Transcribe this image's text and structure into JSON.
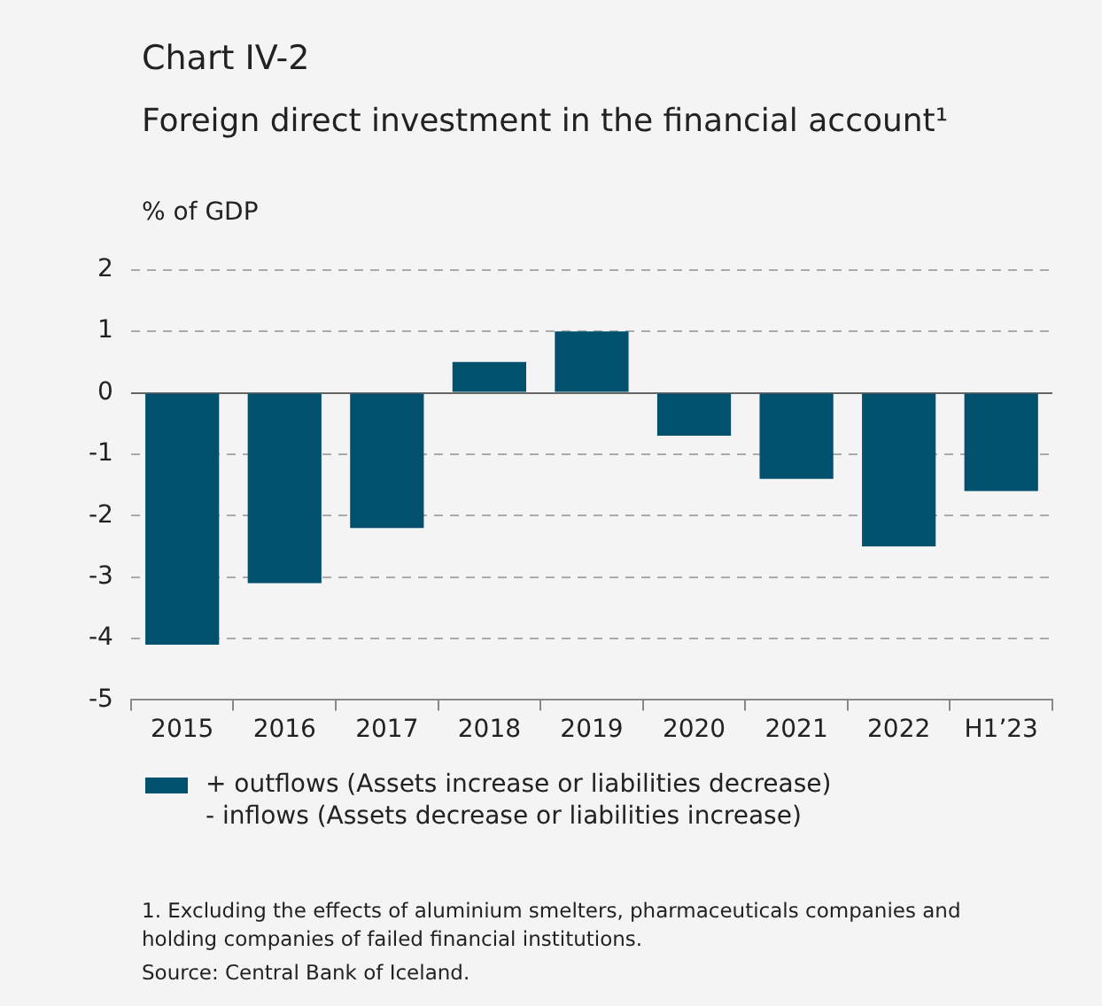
{
  "chart_data": {
    "type": "bar",
    "title": "Chart IV-2",
    "subtitle": "Foreign direct investment in the financial account¹",
    "ylabel": "% of GDP",
    "categories": [
      "2015",
      "2016",
      "2017",
      "2018",
      "2019",
      "2020",
      "2021",
      "2022",
      "H1’23"
    ],
    "series": [
      {
        "name": "+ outflows (Assets increase or liabilities decrease)\n- inflows (Assets decrease or liabilities increase)",
        "color": "#00506e",
        "values": [
          -4.1,
          -3.1,
          -2.2,
          0.5,
          1.0,
          -0.7,
          -1.4,
          -2.5,
          -1.6
        ]
      }
    ],
    "ylim": [
      -5,
      2
    ],
    "yticks": [
      -5,
      -4,
      -3,
      -2,
      -1,
      0,
      1,
      2
    ],
    "grid": "y",
    "legend": "bottom",
    "annotations": [
      "1. Excluding the effects of aluminium smelters, pharmaceuticals companies and holding companies of failed financial institutions.",
      "Source: Central Bank of Iceland."
    ]
  }
}
